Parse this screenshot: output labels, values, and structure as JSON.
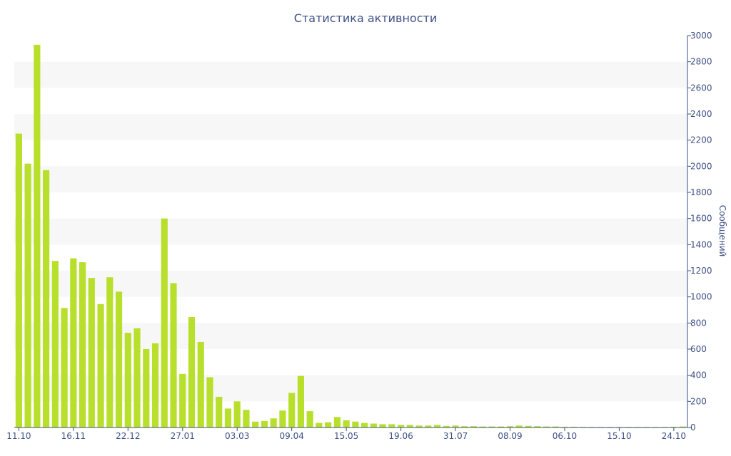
{
  "chart_data": {
    "type": "bar",
    "title": "Статистика активности",
    "xlabel": "",
    "ylabel": "Сообщений",
    "y_axis_position": "right",
    "ylim": [
      0,
      3000
    ],
    "yticks": [
      0,
      200,
      400,
      600,
      800,
      1000,
      1200,
      1400,
      1600,
      1800,
      2000,
      2200,
      2400,
      2600,
      2800,
      3000
    ],
    "x_tick_labels": [
      {
        "index": 0,
        "label": "11.10"
      },
      {
        "index": 6,
        "label": "16.11"
      },
      {
        "index": 12,
        "label": "22.12"
      },
      {
        "index": 18,
        "label": "27.01"
      },
      {
        "index": 24,
        "label": "03.03"
      },
      {
        "index": 30,
        "label": "09.04"
      },
      {
        "index": 36,
        "label": "15.05"
      },
      {
        "index": 42,
        "label": "19.06"
      },
      {
        "index": 48,
        "label": "31.07"
      },
      {
        "index": 54,
        "label": "08.09"
      },
      {
        "index": 60,
        "label": "06.10"
      },
      {
        "index": 66,
        "label": "15.10"
      },
      {
        "index": 72,
        "label": "24.10"
      }
    ],
    "values": [
      2250,
      2020,
      2930,
      1970,
      1275,
      915,
      1295,
      1265,
      1145,
      945,
      1150,
      1040,
      725,
      760,
      600,
      645,
      1600,
      1105,
      410,
      845,
      655,
      385,
      235,
      145,
      200,
      135,
      45,
      50,
      70,
      130,
      265,
      395,
      125,
      35,
      40,
      80,
      55,
      45,
      35,
      30,
      25,
      25,
      20,
      20,
      15,
      15,
      20,
      12,
      15,
      10,
      10,
      8,
      8,
      8,
      10,
      15,
      12,
      10,
      8,
      8,
      6,
      6,
      5,
      5,
      5,
      5,
      5,
      5,
      5,
      5,
      5,
      5,
      6,
      8
    ],
    "bar_color": "#b8df2c",
    "band_color": "#f7f7f7",
    "axis_color": "#3e4f86",
    "grid": "alternating bands",
    "legend": "none"
  }
}
